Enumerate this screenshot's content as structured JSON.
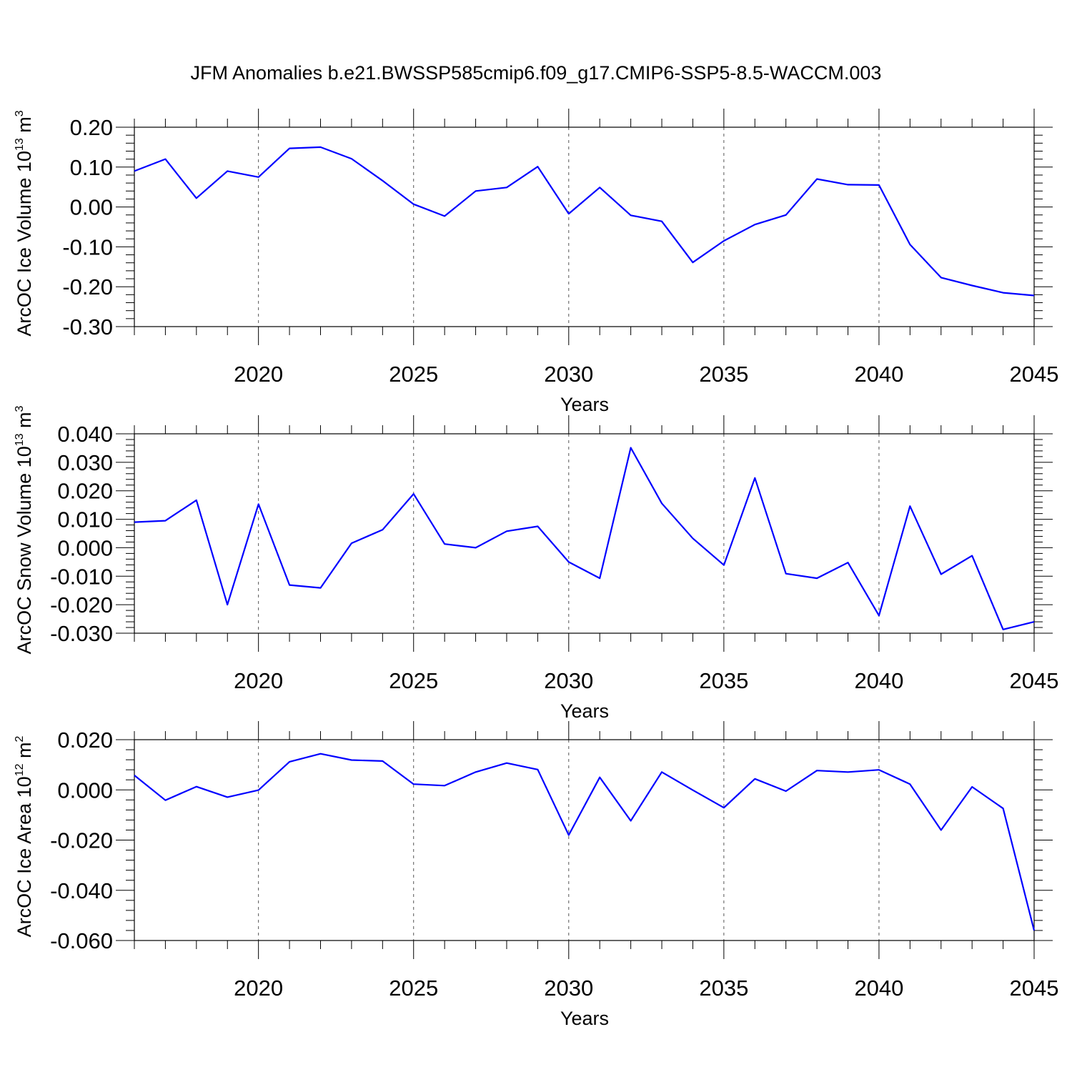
{
  "figure": {
    "title": "JFM Anomalies b.e21.BWSSP585cmip6.f09_g17.CMIP6-SSP5-8.5-WACCM.003"
  },
  "chart_data": [
    {
      "type": "line",
      "ylabel": "ArcOC Ice Volume 10",
      "ylabel_exp": "13",
      "ylabel_unit": " m",
      "ylabel_unit_exp": "3",
      "xlabel": "Years",
      "xlim": [
        2016,
        2045
      ],
      "ylim": [
        -0.3,
        0.2
      ],
      "yticks": [
        0.2,
        0.1,
        0.0,
        -0.1,
        -0.2,
        -0.3
      ],
      "ytick_labels": [
        "0.20",
        "0.10",
        "0.00",
        "-0.10",
        "-0.20",
        "-0.30"
      ],
      "xticks": [
        2020,
        2025,
        2030,
        2035,
        2040,
        2045
      ],
      "xtick_labels": [
        "2020",
        "2025",
        "2030",
        "2035",
        "2040",
        "2045"
      ],
      "grid": "vertical-dashed",
      "color": "#0000ff",
      "x": [
        2016,
        2017,
        2018,
        2019,
        2020,
        2021,
        2022,
        2023,
        2024,
        2025,
        2026,
        2027,
        2028,
        2029,
        2030,
        2031,
        2032,
        2033,
        2034,
        2035,
        2036,
        2037,
        2038,
        2039,
        2040,
        2041,
        2042,
        2043,
        2044,
        2045
      ],
      "values": [
        0.09,
        0.12,
        0.022,
        0.09,
        0.075,
        0.147,
        0.15,
        0.121,
        0.066,
        0.007,
        -0.023,
        0.04,
        0.049,
        0.101,
        -0.017,
        0.049,
        -0.021,
        -0.036,
        -0.139,
        -0.085,
        -0.044,
        -0.02,
        0.07,
        0.056,
        0.055,
        -0.094,
        -0.177,
        -0.197,
        -0.215,
        -0.222
      ]
    },
    {
      "type": "line",
      "ylabel": "ArcOC Snow Volume 10",
      "ylabel_exp": "13",
      "ylabel_unit": " m",
      "ylabel_unit_exp": "3",
      "xlabel": "Years",
      "xlim": [
        2016,
        2045
      ],
      "ylim": [
        -0.03,
        0.04
      ],
      "yticks": [
        0.04,
        0.03,
        0.02,
        0.01,
        0.0,
        -0.01,
        -0.02,
        -0.03
      ],
      "ytick_labels": [
        "0.040",
        "0.030",
        "0.020",
        "0.010",
        "0.000",
        "-0.010",
        "-0.020",
        "-0.030"
      ],
      "xticks": [
        2020,
        2025,
        2030,
        2035,
        2040,
        2045
      ],
      "xtick_labels": [
        "2020",
        "2025",
        "2030",
        "2035",
        "2040",
        "2045"
      ],
      "grid": "vertical-dashed",
      "color": "#0000ff",
      "x": [
        2016,
        2017,
        2018,
        2019,
        2020,
        2021,
        2022,
        2023,
        2024,
        2025,
        2026,
        2027,
        2028,
        2029,
        2030,
        2031,
        2032,
        2033,
        2034,
        2035,
        2036,
        2037,
        2038,
        2039,
        2040,
        2041,
        2042,
        2043,
        2044,
        2045
      ],
      "values": [
        0.009,
        0.0095,
        0.0167,
        -0.02,
        0.0153,
        -0.0131,
        -0.0141,
        0.0016,
        0.0063,
        0.0189,
        0.0013,
        0.0,
        0.0058,
        0.0075,
        -0.005,
        -0.0107,
        0.0351,
        0.0156,
        0.0033,
        -0.0061,
        0.0245,
        -0.0091,
        -0.0107,
        -0.0052,
        -0.0238,
        0.0146,
        -0.0093,
        -0.0028,
        -0.0287,
        -0.026
      ]
    },
    {
      "type": "line",
      "ylabel": "ArcOC Ice Area 10",
      "ylabel_exp": "12",
      "ylabel_unit": " m",
      "ylabel_unit_exp": "2",
      "xlabel": "Years",
      "xlim": [
        2016,
        2045
      ],
      "ylim": [
        -0.06,
        0.02
      ],
      "yticks": [
        0.02,
        0.0,
        -0.02,
        -0.04,
        -0.06
      ],
      "ytick_labels": [
        "0.020",
        "0.000",
        "-0.020",
        "-0.040",
        "-0.060"
      ],
      "xticks": [
        2020,
        2025,
        2030,
        2035,
        2040,
        2045
      ],
      "xtick_labels": [
        "2020",
        "2025",
        "2030",
        "2035",
        "2040",
        "2045"
      ],
      "grid": "vertical-dashed",
      "color": "#0000ff",
      "x": [
        2016,
        2017,
        2018,
        2019,
        2020,
        2021,
        2022,
        2023,
        2024,
        2025,
        2026,
        2027,
        2028,
        2029,
        2030,
        2031,
        2032,
        2033,
        2034,
        2035,
        2036,
        2037,
        2038,
        2039,
        2040,
        2041,
        2042,
        2043,
        2044,
        2045
      ],
      "values": [
        0.0058,
        -0.0041,
        0.0013,
        -0.0029,
        -0.0001,
        0.0112,
        0.0144,
        0.0119,
        0.0115,
        0.0023,
        0.0017,
        0.0071,
        0.0107,
        0.0081,
        -0.018,
        0.005,
        -0.0123,
        0.0071,
        -0.0001,
        -0.0071,
        0.0044,
        -0.0005,
        0.0077,
        0.0071,
        0.008,
        0.0023,
        -0.016,
        0.0012,
        -0.0074,
        -0.056
      ]
    }
  ]
}
